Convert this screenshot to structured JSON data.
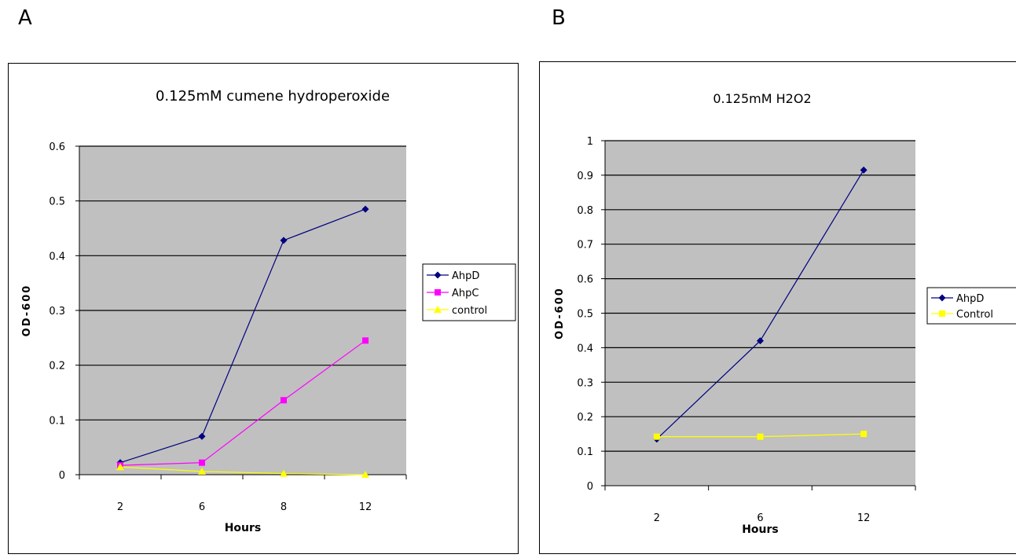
{
  "panels": [
    {
      "label": "A"
    },
    {
      "label": "B"
    }
  ],
  "colors": {
    "plot_bg": "#c0c0c0",
    "gridline": "#000000",
    "AhpD": "#000080",
    "AhpC": "#ff00ff",
    "control": "#ffff00"
  },
  "chart_data": [
    {
      "type": "line",
      "title": "0.125mM cumene hydroperoxide",
      "xlabel": "Hours",
      "ylabel": "OD-600",
      "categories": [
        "2",
        "6",
        "8",
        "12"
      ],
      "ylim": [
        0,
        0.6
      ],
      "yticks": [
        "0",
        "0.1",
        "0.2",
        "0.3",
        "0.4",
        "0.5",
        "0.6"
      ],
      "grid": true,
      "legend": "right",
      "series": [
        {
          "name": "AhpD",
          "marker": "diamond",
          "color": "#000080",
          "values": [
            0.022,
            0.07,
            0.428,
            0.485
          ]
        },
        {
          "name": "AhpC",
          "marker": "square",
          "color": "#ff00ff",
          "values": [
            0.017,
            0.022,
            0.136,
            0.245
          ]
        },
        {
          "name": "control",
          "marker": "triangle",
          "color": "#ffff00",
          "values": [
            0.014,
            0.006,
            0.002,
            0.0
          ]
        }
      ]
    },
    {
      "type": "line",
      "title": "0.125mM H2O2",
      "xlabel": "Hours",
      "ylabel": "OD-600",
      "categories": [
        "2",
        "6",
        "12"
      ],
      "ylim": [
        0,
        1
      ],
      "yticks": [
        "0",
        "0.1",
        "0.2",
        "0.3",
        "0.4",
        "0.5",
        "0.6",
        "0.7",
        "0.8",
        "0.9",
        "1"
      ],
      "grid": true,
      "legend": "right",
      "series": [
        {
          "name": "AhpD",
          "marker": "diamond",
          "color": "#000080",
          "values": [
            0.135,
            0.42,
            0.915
          ]
        },
        {
          "name": "Control",
          "marker": "square",
          "color": "#ffff00",
          "values": [
            0.142,
            0.142,
            0.15
          ]
        }
      ]
    }
  ]
}
